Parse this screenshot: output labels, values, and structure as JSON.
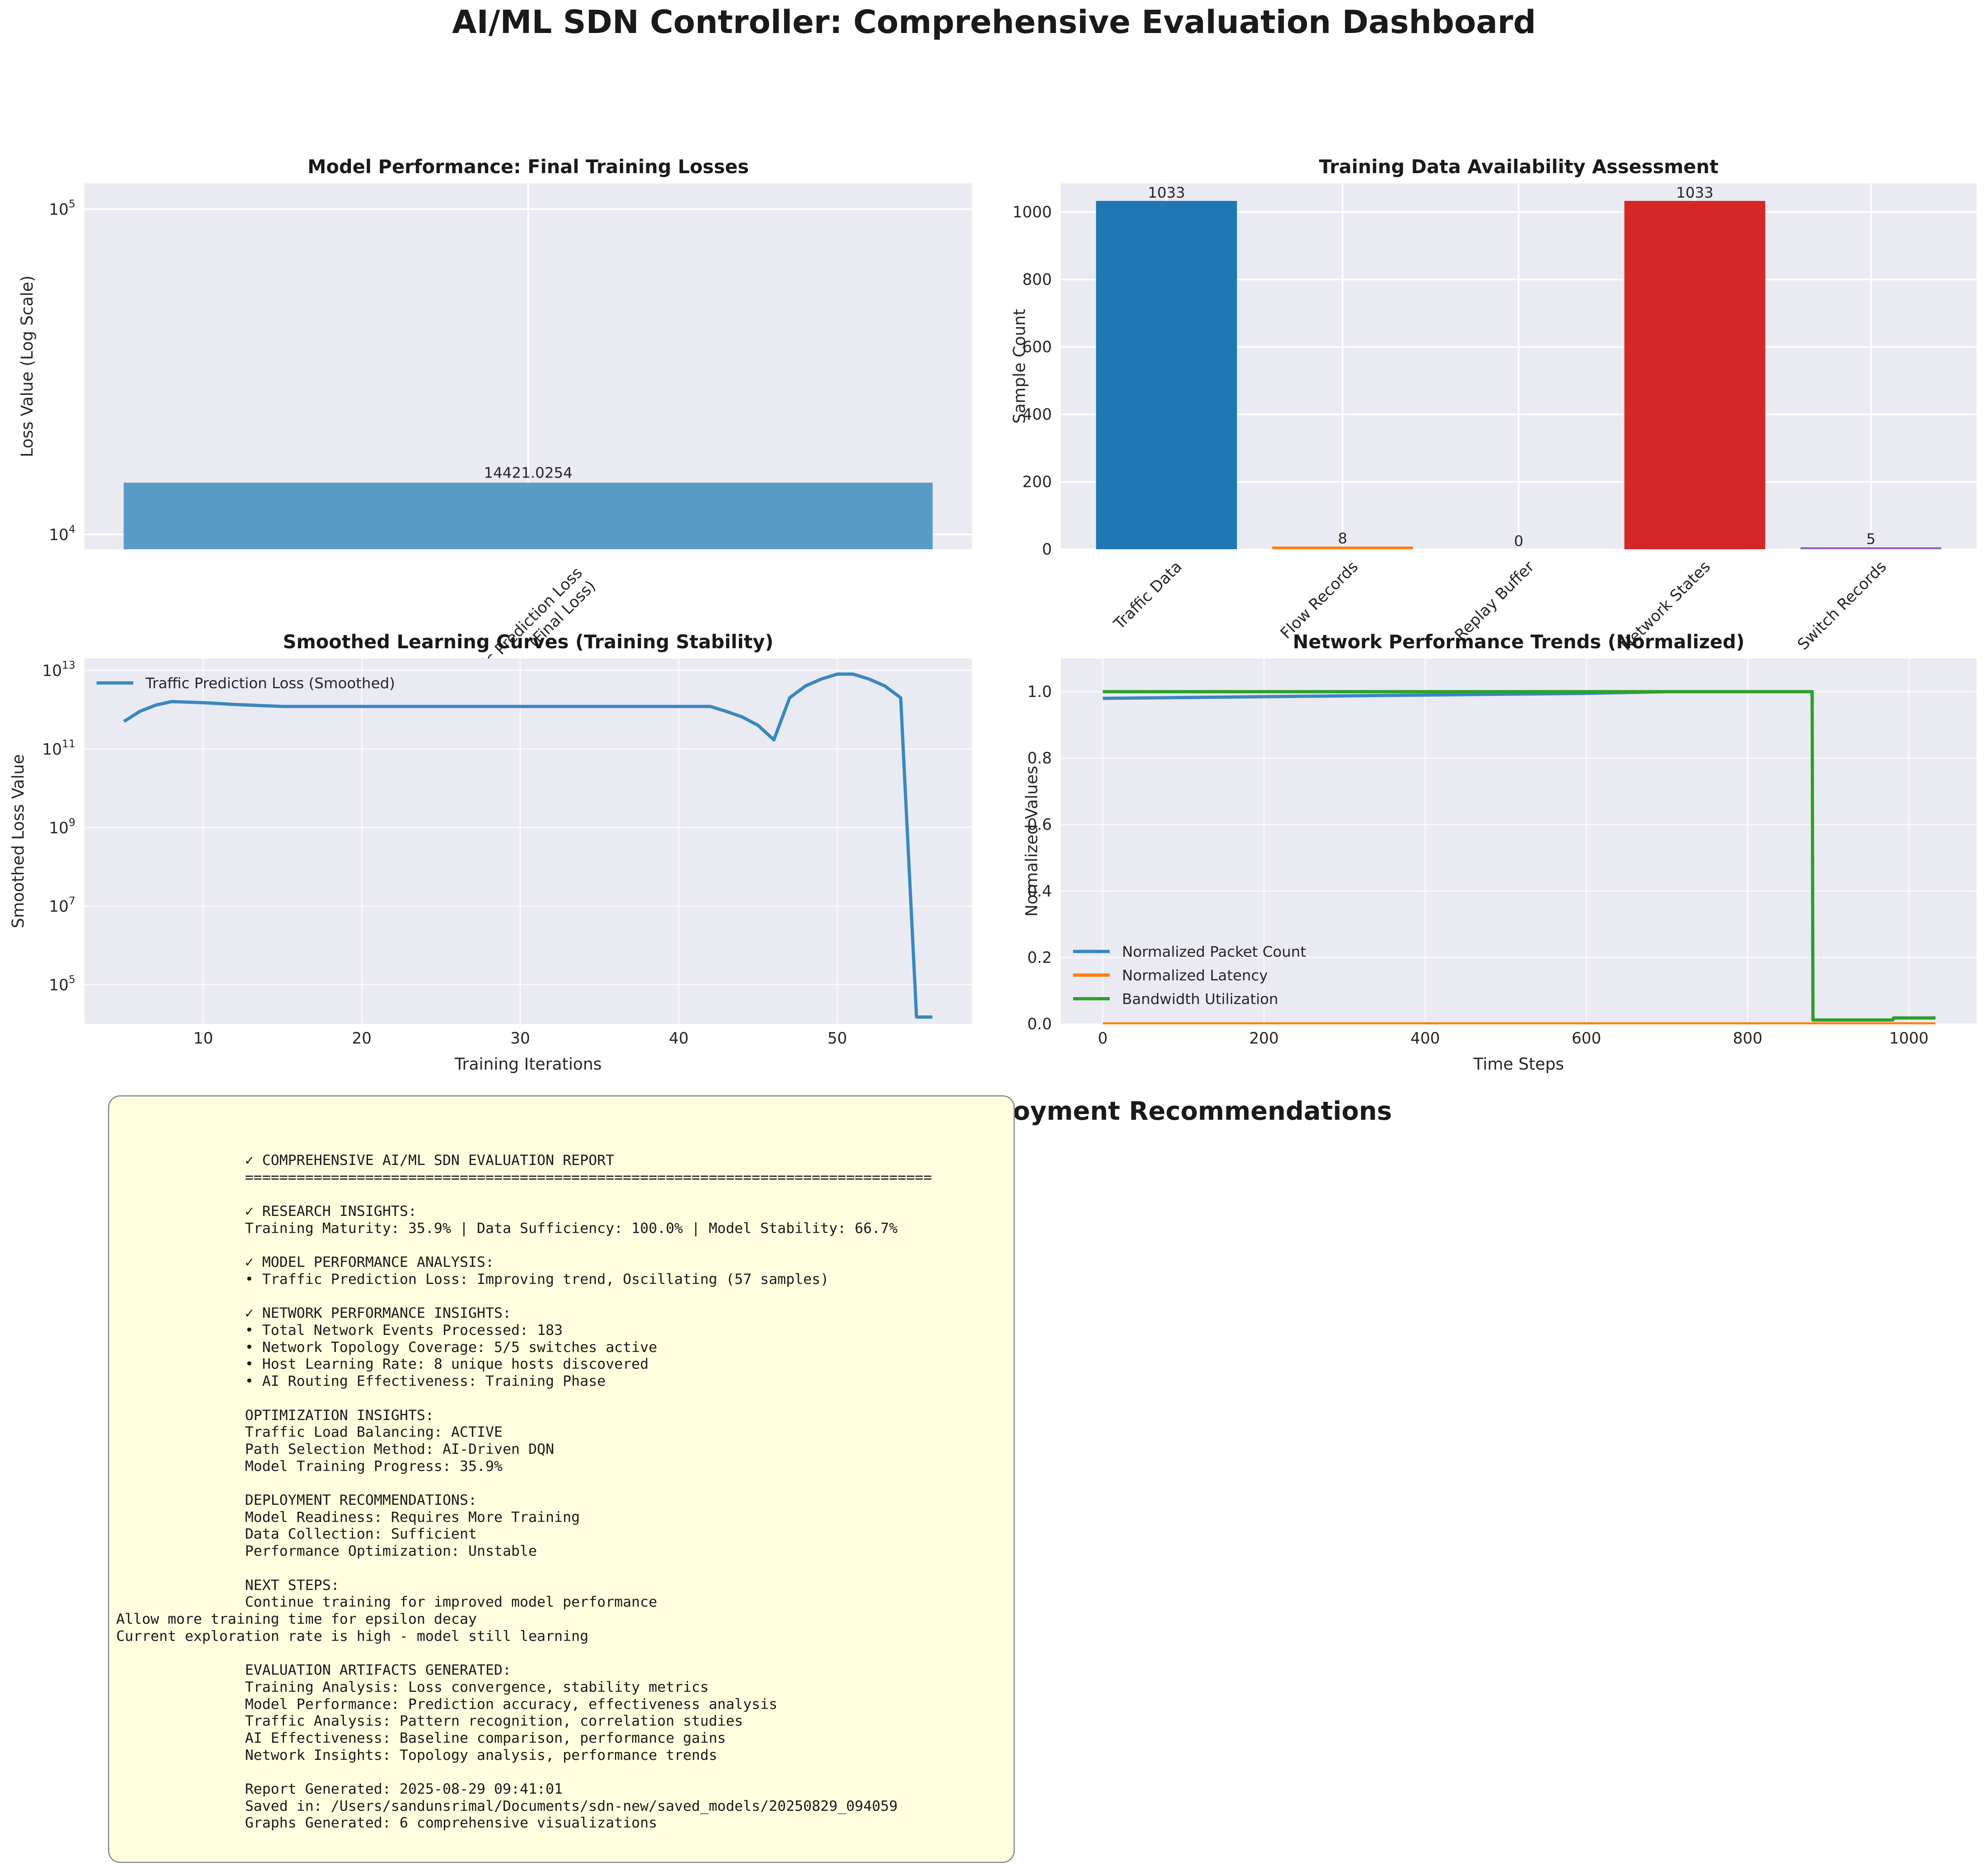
{
  "page": {
    "title": "AI/ML SDN Controller: Comprehensive Evaluation Dashboard"
  },
  "chart_data": [
    {
      "type": "bar",
      "title": "Model Performance: Final Training Losses",
      "ylabel": "Loss Value (Log Scale)",
      "xlabel": "",
      "yscale": "log",
      "ylim": [
        9000,
        120000
      ],
      "yticks": [
        10000,
        100000
      ],
      "ytick_labels": [
        {
          "base": "10",
          "exp": "4"
        },
        {
          "base": "10",
          "exp": "5"
        }
      ],
      "categories": [
        "Traffic Prediction Loss\n(Final Loss)"
      ],
      "values": [
        14421.0254
      ],
      "data_labels": [
        "14421.0254"
      ],
      "colors": [
        "#5b9bc8"
      ],
      "grid": true
    },
    {
      "type": "bar",
      "title": "Training Data Availability Assessment",
      "ylabel": "Sample Count",
      "xlabel": "",
      "ylim": [
        0,
        1085
      ],
      "yticks": [
        0,
        200,
        400,
        600,
        800,
        1000
      ],
      "categories": [
        "Traffic Data",
        "Flow Records",
        "Replay Buffer",
        "Network States",
        "Switch Records"
      ],
      "values": [
        1033,
        8,
        0,
        1033,
        5
      ],
      "data_labels": [
        "1033",
        "8",
        "0",
        "1033",
        "5"
      ],
      "colors": [
        "#1f77b4",
        "#ff7f0e",
        "#2ca02c",
        "#d62728",
        "#9467bd"
      ],
      "grid": true
    },
    {
      "type": "line",
      "title": "Smoothed Learning Curves (Training Stability)",
      "ylabel": "Smoothed Loss Value",
      "xlabel": "Training Iterations",
      "yscale": "log",
      "xlim": [
        2.5,
        58.5
      ],
      "ylim": [
        10000,
        20000000000000
      ],
      "xticks": [
        10,
        20,
        30,
        40,
        50
      ],
      "yticks": [
        100000,
        10000000,
        1000000000,
        100000000000,
        10000000000000
      ],
      "ytick_labels": [
        {
          "base": "10",
          "exp": "5"
        },
        {
          "base": "10",
          "exp": "7"
        },
        {
          "base": "10",
          "exp": "9"
        },
        {
          "base": "10",
          "exp": "11"
        },
        {
          "base": "10",
          "exp": "13"
        }
      ],
      "legend": "top-left",
      "grid": true,
      "series": [
        {
          "name": "Traffic Prediction Loss (Smoothed)",
          "color": "#3a87c0",
          "x": [
            5,
            6,
            7,
            8,
            10,
            12,
            15,
            20,
            25,
            30,
            35,
            40,
            42,
            43,
            44,
            45,
            46,
            47,
            48,
            49,
            50,
            51,
            52,
            53,
            54,
            55,
            56
          ],
          "y": [
            500000000000,
            900000000000,
            1300000000000,
            1600000000000,
            1500000000000,
            1350000000000,
            1200000000000,
            1200000000000,
            1200000000000,
            1200000000000,
            1200000000000,
            1200000000000,
            1200000000000,
            900000000000,
            650000000000,
            400000000000,
            170000000000,
            2000000000000,
            4000000000000,
            6000000000000,
            8000000000000,
            8000000000000,
            6000000000000,
            4000000000000,
            2000000000000,
            15000,
            15000
          ]
        }
      ]
    },
    {
      "type": "line",
      "title": "Network Performance Trends (Normalized)",
      "ylabel": "Normalized Values",
      "xlabel": "Time Steps",
      "xlim": [
        -52,
        1084
      ],
      "ylim": [
        0,
        1.1
      ],
      "xticks": [
        0,
        200,
        400,
        600,
        800,
        1000
      ],
      "yticks": [
        0.0,
        0.2,
        0.4,
        0.6,
        0.8,
        1.0
      ],
      "ytick_format": "0.0",
      "legend": "lower-left",
      "grid": true,
      "series": [
        {
          "name": "Normalized Packet Count",
          "color": "#3a87c0",
          "x": [
            0,
            200,
            400,
            600,
            700,
            880
          ],
          "y": [
            0.98,
            0.985,
            0.99,
            0.995,
            1.0,
            1.0
          ]
        },
        {
          "name": "Normalized Latency",
          "color": "#ff7f0e",
          "x": [
            0,
            1033
          ],
          "y": [
            0.002,
            0.002
          ]
        },
        {
          "name": "Bandwidth Utilization",
          "color": "#2ca02c",
          "x": [
            0,
            880,
            881,
            980,
            981,
            1033
          ],
          "y": [
            1.0,
            1.0,
            0.012,
            0.012,
            0.018,
            0.018
          ]
        }
      ]
    }
  ],
  "insights": {
    "title": "Research Insights & Deployment Recommendations",
    "report_lines": [
      "               ✓ COMPREHENSIVE AI/ML SDN EVALUATION REPORT",
      "               ================================================================================",
      "",
      "               ✓ RESEARCH INSIGHTS:",
      "               Training Maturity: 35.9% | Data Sufficiency: 100.0% | Model Stability: 66.7%",
      "",
      "               ✓ MODEL PERFORMANCE ANALYSIS:",
      "               • Traffic Prediction Loss: Improving trend, Oscillating (57 samples)",
      "",
      "               ✓ NETWORK PERFORMANCE INSIGHTS:",
      "               • Total Network Events Processed: 183",
      "               • Network Topology Coverage: 5/5 switches active",
      "               • Host Learning Rate: 8 unique hosts discovered",
      "               • AI Routing Effectiveness: Training Phase",
      "",
      "               OPTIMIZATION INSIGHTS:",
      "               Traffic Load Balancing: ACTIVE",
      "               Path Selection Method: AI-Driven DQN",
      "               Model Training Progress: 35.9%",
      "",
      "               DEPLOYMENT RECOMMENDATIONS:",
      "               Model Readiness: Requires More Training",
      "               Data Collection: Sufficient",
      "               Performance Optimization: Unstable",
      "",
      "               NEXT STEPS:",
      "               Continue training for improved model performance",
      "Allow more training time for epsilon decay",
      "Current exploration rate is high - model still learning",
      "",
      "               EVALUATION ARTIFACTS GENERATED:",
      "               Training Analysis: Loss convergence, stability metrics",
      "               Model Performance: Prediction accuracy, effectiveness analysis",
      "               Traffic Analysis: Pattern recognition, correlation studies",
      "               AI Effectiveness: Baseline comparison, performance gains",
      "               Network Insights: Topology analysis, performance trends",
      "",
      "               Report Generated: 2025-08-29 09:41:01",
      "               Saved in: /Users/sandunsrimal/Documents/sdn-new/saved_models/20250829_094059",
      "               Graphs Generated: 6 comprehensive visualizations"
    ]
  }
}
